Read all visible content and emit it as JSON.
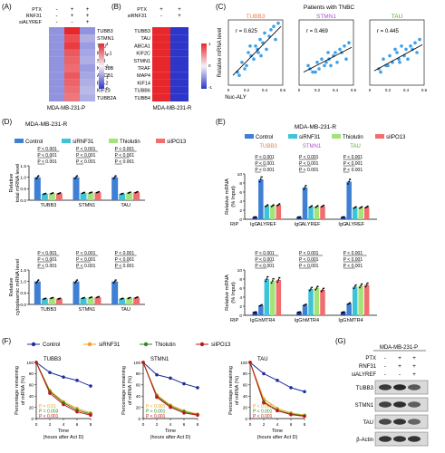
{
  "colors": {
    "control": "#3f7fd4",
    "siRNF31": "#3fc3d9",
    "thiolutin": "#a3e37a",
    "siIPO13": "#f26d6d",
    "tubb3_label": "#f07c3c",
    "stmn1_label": "#b24fd6",
    "tau_label": "#55a82f",
    "f_control": "#1f2f9a",
    "f_siRNF31": "#f0a020",
    "f_thiolutin": "#2e8b1f",
    "f_siIPO13": "#c01818",
    "p_text": "#e0261b"
  },
  "panelA": {
    "letter": "(A)",
    "conditions": [
      "PTX",
      "RNF31",
      "siALYREF"
    ],
    "marks": [
      [
        "-",
        "+",
        "+"
      ],
      [
        "-",
        "+",
        "+"
      ],
      [
        "-",
        "-",
        "+"
      ]
    ],
    "genes": [
      "TUBB3",
      "STMN1",
      "TAU",
      "MCL-1",
      "SRI",
      "KIF18B",
      "ABCB1",
      "Bcl-2",
      "KIF23",
      "TUBB2A"
    ],
    "col_label": "MDA-MB-231-P",
    "legend_ticks": [
      "4",
      "3",
      "2",
      "1",
      "0"
    ],
    "values": [
      [
        1,
        4,
        1
      ],
      [
        1,
        3.6,
        1.3
      ],
      [
        1,
        3.8,
        1.1
      ],
      [
        1,
        3.5,
        1.2
      ],
      [
        1,
        3.4,
        1.3
      ],
      [
        1,
        3.3,
        1.1
      ],
      [
        1,
        3.5,
        1.2
      ],
      [
        1,
        3.4,
        1.3
      ],
      [
        1,
        3.3,
        1.4
      ],
      [
        1,
        3.2,
        1.3
      ]
    ]
  },
  "panelB": {
    "letter": "(B)",
    "conditions": [
      "PTX",
      "siRNF31"
    ],
    "marks": [
      [
        "+",
        "+"
      ],
      [
        "-",
        "+"
      ]
    ],
    "genes": [
      "TUBB3",
      "TAU",
      "ABCA1",
      "KIF2C",
      "STMN1",
      "TRAF",
      "MAP4",
      "KIF14",
      "TUBB6",
      "TUBB4"
    ],
    "col_label": "MDA-MB-231-R",
    "legend_ticks": [
      "1",
      "0",
      "-1"
    ],
    "values": [
      [
        1,
        -1
      ],
      [
        1,
        -1
      ],
      [
        1,
        -1
      ],
      [
        1,
        -1
      ],
      [
        1,
        -1
      ],
      [
        1,
        -1
      ],
      [
        1,
        -1
      ],
      [
        1,
        -1
      ],
      [
        1,
        -1
      ],
      [
        1,
        -1
      ]
    ]
  },
  "panelC": {
    "letter": "(C)",
    "title": "Patients with TNBC",
    "ylabel": "Relative mRNA level",
    "xlabel": "Nuc-ALY",
    "x_ticks": [
      "0",
      "0.2",
      "0.4",
      "0.6"
    ],
    "plots": [
      {
        "name": "TUBB3",
        "r": "r = 0.625"
      },
      {
        "name": "STMN1",
        "r": "r = 0.469"
      },
      {
        "name": "TAU",
        "r": "r = 0.445"
      }
    ]
  },
  "panelD": {
    "letter": "(D)",
    "cell": "MDA-MB-231-R",
    "legend": [
      "Control",
      "siRNF31",
      "Thiolutin",
      "siIPO13"
    ],
    "top_ylabel": [
      "Relative",
      "total mRNA level"
    ],
    "bottom_ylabel": [
      "Relative",
      "cytoplasmic mRNA level"
    ],
    "genes": [
      "TUBB3",
      "STMN1",
      "TAU"
    ],
    "p": "P < 0.001",
    "y_ticks": [
      "0.0",
      "0.5",
      "1.0",
      "1.5"
    ],
    "top_values": [
      [
        1.0,
        0.28,
        0.3,
        0.3
      ],
      [
        1.0,
        0.32,
        0.33,
        0.35
      ],
      [
        1.0,
        0.28,
        0.33,
        0.35
      ]
    ],
    "bottom_values": [
      [
        1.0,
        0.25,
        0.28,
        0.25
      ],
      [
        1.0,
        0.28,
        0.3,
        0.32
      ],
      [
        1.0,
        0.25,
        0.28,
        0.3
      ]
    ]
  },
  "panelE": {
    "letter": "(E)",
    "cell": "MDA-MB-231-R",
    "legend": [
      "Control",
      "siRNF31",
      "Thiolutin",
      "siIPO13"
    ],
    "genes": [
      "TUBB3",
      "STMN1",
      "TAU"
    ],
    "top_ylabel": [
      "Relative mRNA",
      "(% Input)"
    ],
    "bottom_ylabel": [
      "Relative mRNA",
      "(% Input)"
    ],
    "rip": "RIP",
    "igg": "IgG",
    "top_ab": "ALYREF",
    "bottom_ab": "hMTR4",
    "p": "P < 0.001",
    "top_y_ticks": [
      "0",
      "2",
      "4",
      "6",
      "8",
      "10"
    ],
    "bottom_y_ticks": [
      "0",
      "2",
      "4",
      "6",
      "8",
      "10"
    ],
    "top_values": [
      [
        0.5,
        8.8,
        3.0,
        3.0,
        3.2
      ],
      [
        0.5,
        7.0,
        2.8,
        2.8,
        2.9
      ],
      [
        0.5,
        8.3,
        2.6,
        2.6,
        2.7
      ]
    ],
    "bottom_values": [
      [
        0.7,
        2.2,
        8.0,
        7.6,
        7.8
      ],
      [
        0.7,
        2.3,
        5.8,
        6.0,
        5.6
      ],
      [
        0.7,
        2.6,
        6.3,
        6.5,
        6.7
      ]
    ]
  },
  "panelF": {
    "letter": "(F)",
    "legend": [
      "Control",
      "siRNF31",
      "Thiolutin",
      "siIPO13"
    ],
    "ylabel": [
      "Percentage remaining",
      "of mRNA (%)"
    ],
    "xlabel": [
      "Time",
      "(hours after Act D)"
    ],
    "x_ticks": [
      "0",
      "2",
      "4",
      "6",
      "8"
    ],
    "y_ticks": [
      "0",
      "20",
      "40",
      "60",
      "80",
      "100"
    ],
    "plots": [
      {
        "name": "TUBB3",
        "p": [
          "P = 0.01",
          "P = 0.003",
          "P < 0.001"
        ],
        "control": [
          100,
          82,
          74,
          68,
          58
        ],
        "siRNF31": [
          100,
          50,
          30,
          18,
          10
        ],
        "thiolutin": [
          100,
          48,
          28,
          15,
          8
        ],
        "siIPO13": [
          100,
          45,
          25,
          12,
          6
        ]
      },
      {
        "name": "STMN1",
        "p": [
          "P < 0.001",
          "P < 0.001",
          "P < 0.001"
        ],
        "control": [
          100,
          78,
          72,
          62,
          55
        ],
        "siRNF31": [
          100,
          42,
          24,
          14,
          8
        ],
        "thiolutin": [
          100,
          40,
          22,
          12,
          7
        ],
        "siIPO13": [
          100,
          38,
          20,
          10,
          6
        ]
      },
      {
        "name": "TAU",
        "p": [
          "P < 0.001",
          "P < 0.001",
          "P < 0.001"
        ],
        "control": [
          100,
          80,
          68,
          55,
          48
        ],
        "siRNF31": [
          100,
          35,
          18,
          10,
          6
        ],
        "thiolutin": [
          100,
          30,
          15,
          8,
          5
        ],
        "siIPO13": [
          100,
          28,
          14,
          7,
          4
        ]
      }
    ]
  },
  "panelG": {
    "letter": "(G)",
    "cell": "MDA-MB-231-P",
    "conditions": [
      "PTX",
      "RNF31",
      "siALYREF"
    ],
    "marks": [
      [
        "-",
        "+",
        "+"
      ],
      [
        "-",
        "+",
        "+"
      ],
      [
        "-",
        "-",
        "+"
      ]
    ],
    "bands": [
      "TUBB3",
      "STMN1",
      "TAU",
      "β-Actin"
    ]
  }
}
